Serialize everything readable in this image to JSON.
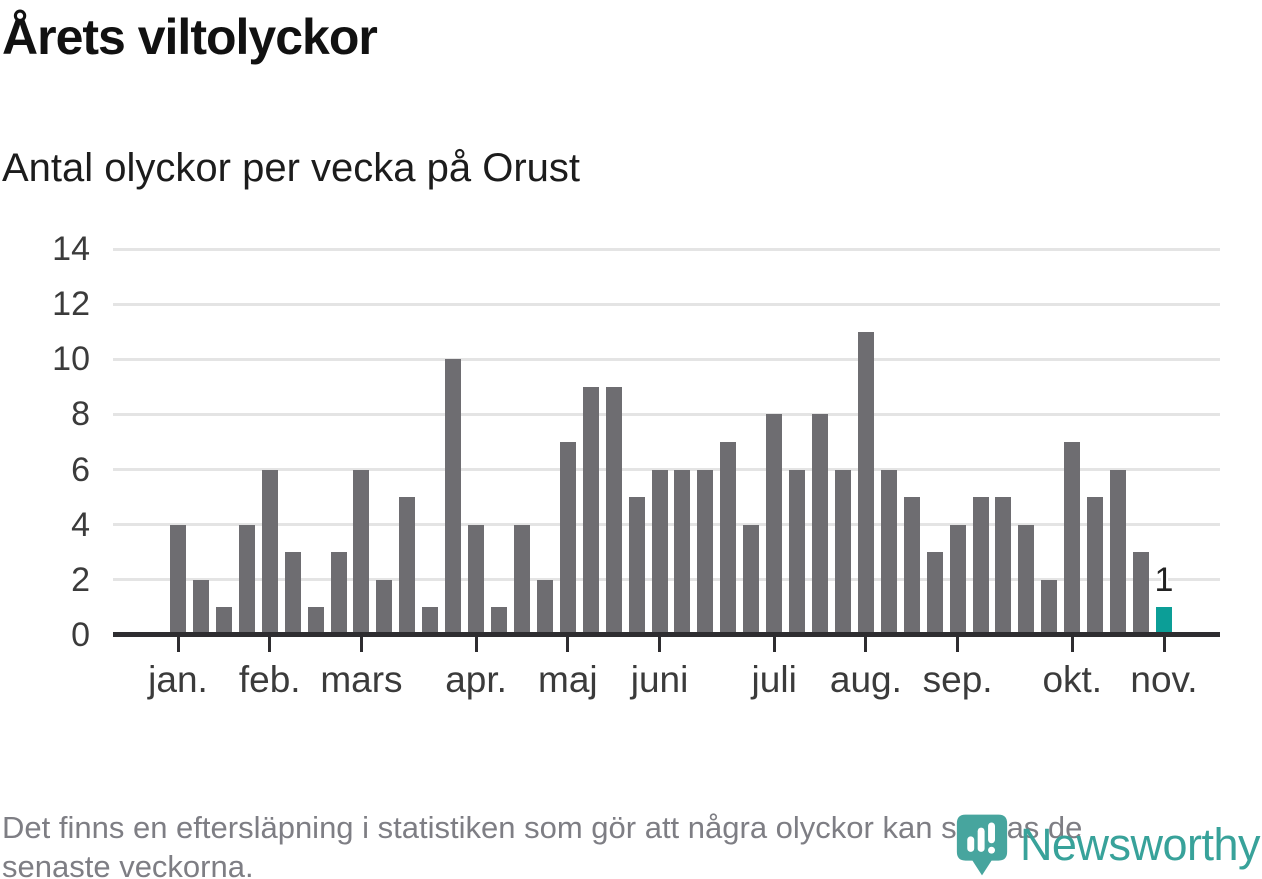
{
  "header": {
    "title": "Årets viltolyckor",
    "subtitle": "Antal olyckor per vecka på Orust"
  },
  "chart_data": {
    "type": "bar",
    "title": "Årets viltolyckor",
    "subtitle": "Antal olyckor per vecka på Orust",
    "x_unit": "vecka",
    "values": [
      4,
      2,
      1,
      4,
      6,
      3,
      1,
      3,
      6,
      2,
      5,
      1,
      10,
      4,
      1,
      4,
      2,
      7,
      9,
      9,
      5,
      6,
      6,
      6,
      7,
      4,
      8,
      6,
      8,
      6,
      11,
      6,
      5,
      3,
      4,
      5,
      5,
      4,
      2,
      7,
      5,
      6,
      3,
      1
    ],
    "highlight_last_index": 43,
    "last_value_label": "1",
    "ylim": [
      0,
      14
    ],
    "yticks": [
      0,
      2,
      4,
      6,
      8,
      10,
      12,
      14
    ],
    "months": [
      {
        "label": "jan.",
        "week": 0
      },
      {
        "label": "feb.",
        "week": 4
      },
      {
        "label": "mars",
        "week": 8
      },
      {
        "label": "apr.",
        "week": 13
      },
      {
        "label": "maj",
        "week": 17
      },
      {
        "label": "juni",
        "week": 21
      },
      {
        "label": "juli",
        "week": 26
      },
      {
        "label": "aug.",
        "week": 30
      },
      {
        "label": "sep.",
        "week": 34
      },
      {
        "label": "okt.",
        "week": 39
      },
      {
        "label": "nov.",
        "week": 43
      }
    ],
    "grid": true,
    "legend_position": "none",
    "colors": {
      "bar": "#6e6d71",
      "highlight": "#0c9e97",
      "grid": "#e4e4e4",
      "axis": "#2e2d30"
    }
  },
  "footer": {
    "line1": "Det finns en eftersläpning i statistiken som gör att några olyckor kan saknas de",
    "line2": "senaste veckorna."
  },
  "logo": {
    "text": "Newsworthy",
    "color": "#38a29a",
    "icon": "newsworthy-pin-icon"
  }
}
